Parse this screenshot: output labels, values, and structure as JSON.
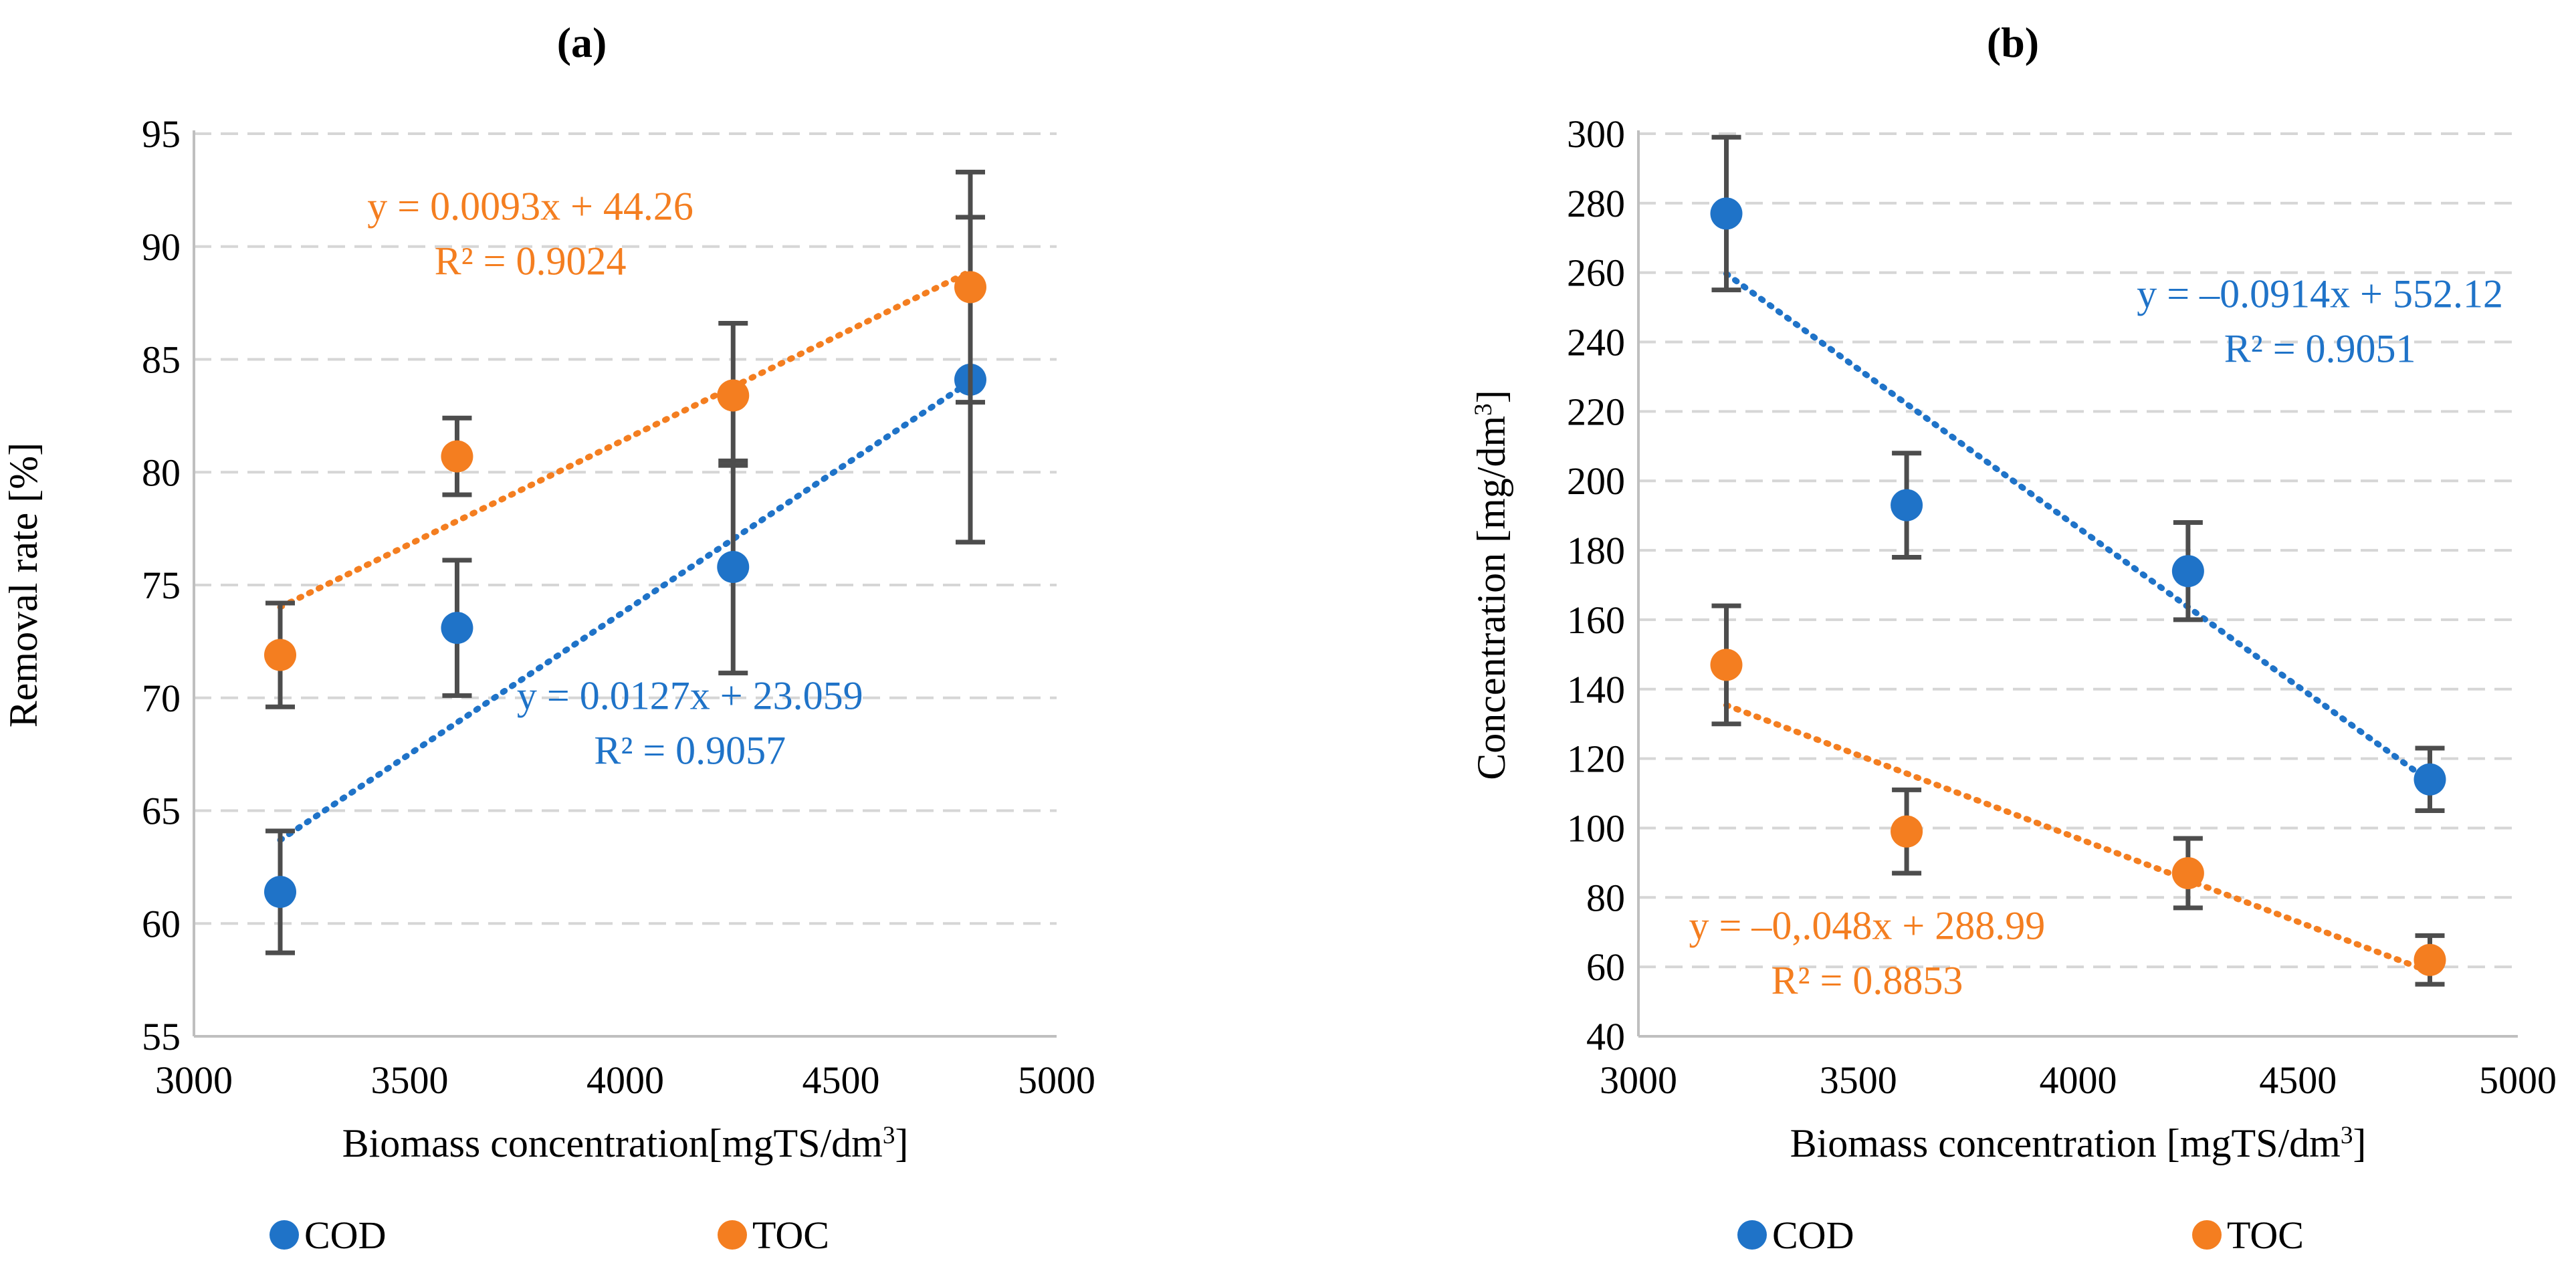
{
  "colors": {
    "cod": "#1f73c8",
    "toc": "#f47e20",
    "axis": "#bfbfbf",
    "grid": "#d6d6d6",
    "error": "#4d4d4d",
    "text": "#000000"
  },
  "chart_data": [
    {
      "panel_label": "(a)",
      "type": "scatter",
      "xlabel": "Biomass concentration[mgTS/dm³]",
      "ylabel": "Removal rate [%]",
      "xlim": [
        3000,
        5000
      ],
      "ylim": [
        55,
        95
      ],
      "xticks": [
        "3000",
        "3500",
        "4000",
        "4500",
        "5000"
      ],
      "yticks": [
        "55",
        "60",
        "65",
        "70",
        "75",
        "80",
        "85",
        "90",
        "95"
      ],
      "grid": true,
      "legend": [
        "COD",
        "TOC"
      ],
      "series": [
        {
          "name": "COD",
          "color_key": "cod",
          "x": [
            3200,
            3610,
            4250,
            4800
          ],
          "y": [
            61.4,
            73.1,
            75.8,
            84.1
          ],
          "err_low": [
            58.7,
            70.1,
            71.1,
            76.9
          ],
          "err_high": [
            64.1,
            76.1,
            80.5,
            91.3
          ],
          "trend": {
            "slope": 0.0127,
            "intercept": 23.059
          },
          "equation": "y = 0.0127x + 23.059",
          "r2": "R² = 0.9057",
          "label_pos": [
            4150,
            69.5
          ]
        },
        {
          "name": "TOC",
          "color_key": "toc",
          "x": [
            3200,
            3610,
            4250,
            4800
          ],
          "y": [
            71.9,
            80.7,
            83.4,
            88.2
          ],
          "err_low": [
            69.6,
            79.0,
            80.3,
            83.1
          ],
          "err_high": [
            74.2,
            82.4,
            86.6,
            93.3
          ],
          "trend": {
            "slope": 0.0093,
            "intercept": 44.26
          },
          "equation": "y = 0.0093x + 44.26",
          "r2": "R² = 0.9024",
          "label_pos": [
            3780,
            91.2
          ]
        }
      ]
    },
    {
      "panel_label": "(b)",
      "type": "scatter",
      "xlabel": "Biomass concentration [mgTS/dm³]",
      "ylabel": "Concentration [mg/dm³]",
      "xlim": [
        3000,
        5000
      ],
      "ylim": [
        40,
        300
      ],
      "xticks": [
        "3000",
        "3500",
        "4000",
        "4500",
        "5000"
      ],
      "yticks": [
        "40",
        "60",
        "80",
        "100",
        "120",
        "140",
        "160",
        "180",
        "200",
        "220",
        "240",
        "260",
        "280",
        "300"
      ],
      "grid": true,
      "legend": [
        "COD",
        "TOC"
      ],
      "series": [
        {
          "name": "COD",
          "color_key": "cod",
          "x": [
            3200,
            3610,
            4250,
            4800
          ],
          "y": [
            277,
            193,
            174,
            114
          ],
          "err_low": [
            255,
            178,
            160,
            105
          ],
          "err_high": [
            299,
            208,
            188,
            123
          ],
          "trend": {
            "slope": -0.0914,
            "intercept": 552.12
          },
          "equation": "y = –0.0914x + 552.12",
          "r2": "R² = 0.9051",
          "label_pos": [
            4550,
            250
          ]
        },
        {
          "name": "TOC",
          "color_key": "toc",
          "x": [
            3200,
            3610,
            4250,
            4800
          ],
          "y": [
            147,
            99,
            87,
            62
          ],
          "err_low": [
            130,
            87,
            77,
            55
          ],
          "err_high": [
            164,
            111,
            97,
            69
          ],
          "trend": {
            "slope": -0.048,
            "intercept": 288.99
          },
          "equation": "y = –0,.048x + 288.99",
          "r2": "R² = 0.8853",
          "label_pos": [
            3520,
            68
          ]
        }
      ]
    }
  ]
}
